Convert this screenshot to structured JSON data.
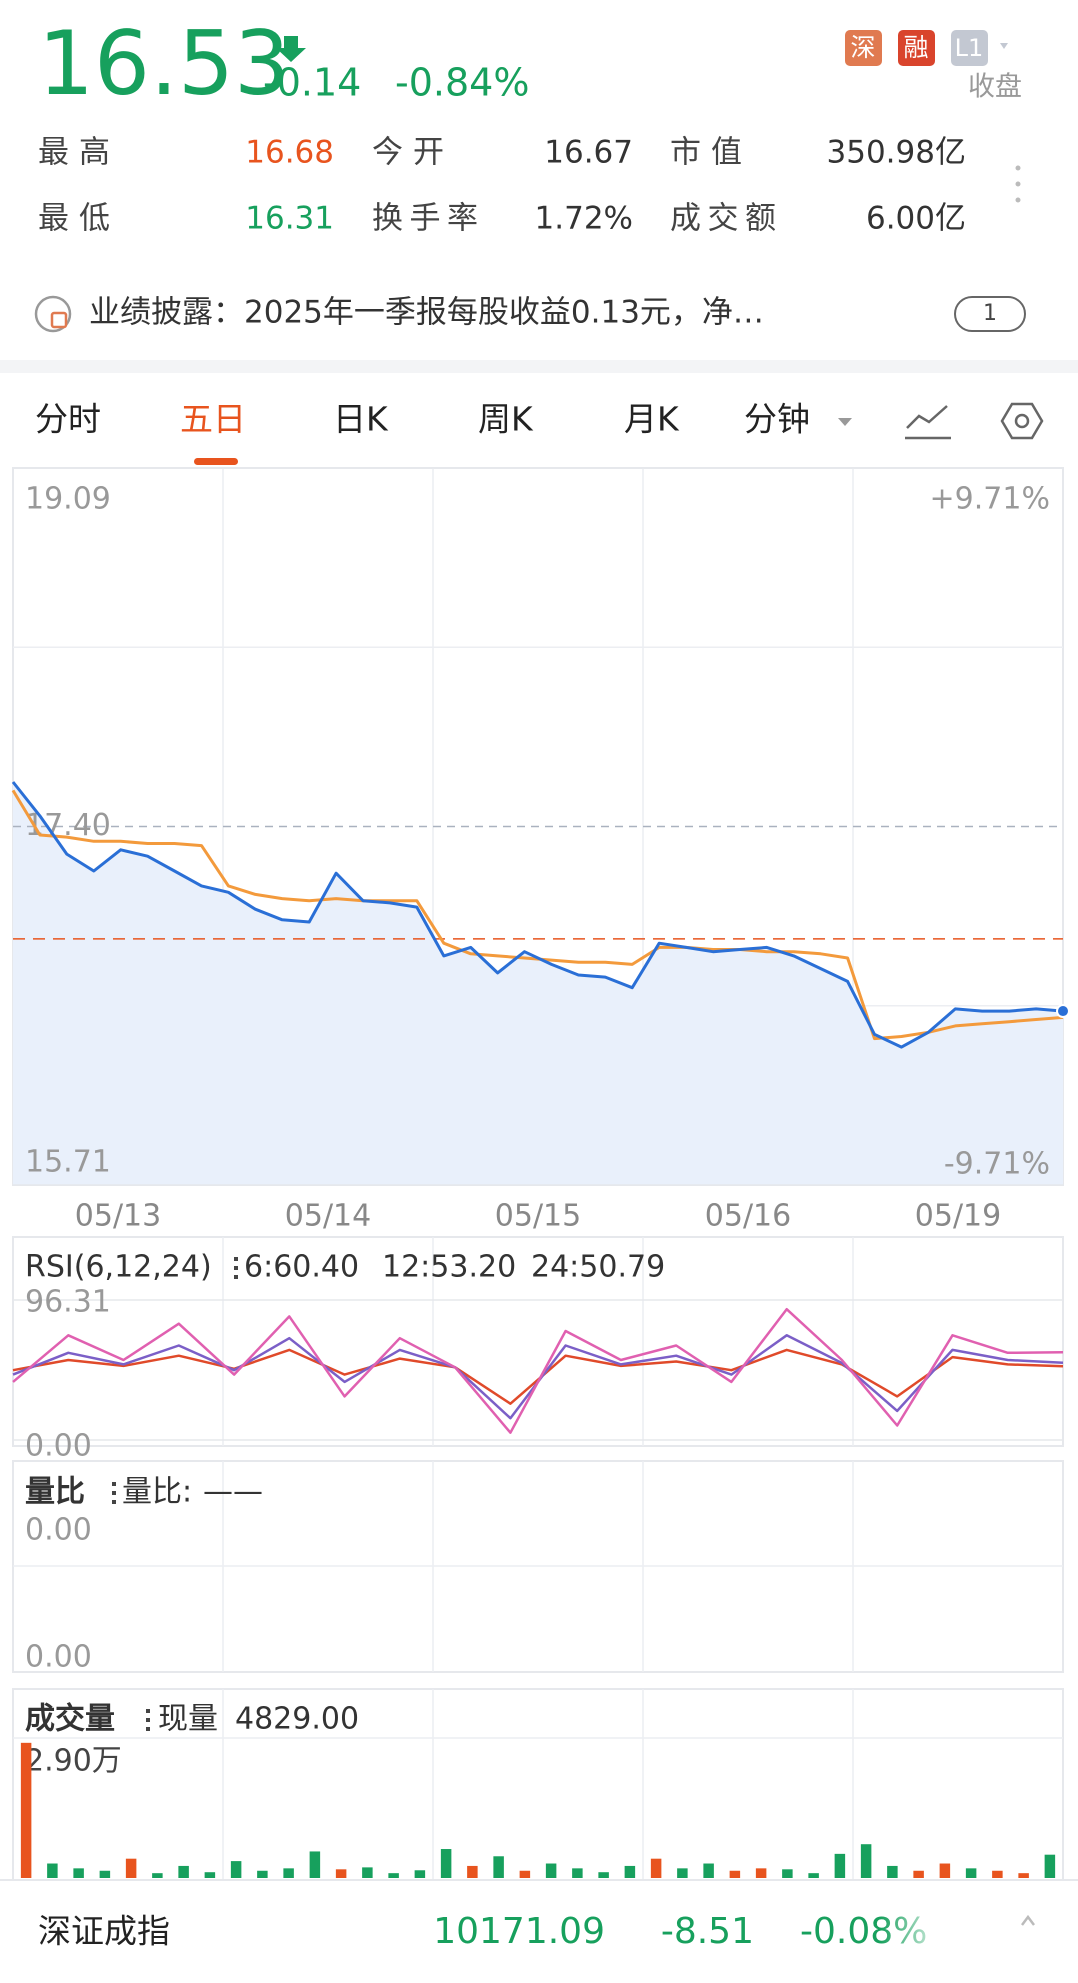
{
  "header": {
    "price": "16.53",
    "change": "-0.14",
    "change_pct": "-0.84%",
    "badges": [
      "深",
      "融",
      "L1"
    ],
    "status": "收盘"
  },
  "stats": [
    [
      {
        "label": "最高",
        "value": "16.68",
        "color": "#e8541e"
      },
      {
        "label": "今开",
        "value": "16.67",
        "color": "#333333"
      },
      {
        "label": "市值",
        "value": "350.98亿",
        "color": "#333333"
      }
    ],
    [
      {
        "label": "最低",
        "value": "16.31",
        "color": "#17a05d"
      },
      {
        "label": "换手率",
        "value": "1.72%",
        "color": "#333333"
      },
      {
        "label": "成交额",
        "value": "6.00亿",
        "color": "#333333"
      }
    ]
  ],
  "notice": {
    "text": "业绩披露：2025年一季报每股收益0.13元，净…",
    "badge": "1"
  },
  "tabs": [
    "分时",
    "五日",
    "日K",
    "周K",
    "月K",
    "分钟"
  ],
  "price_chart": {
    "type": "line",
    "x_labels": [
      "05/13",
      "05/14",
      "05/15",
      "05/16",
      "05/19"
    ],
    "series": [
      {
        "color": "#2a6fd6",
        "values": [
          17.61,
          17.45,
          17.27,
          17.19,
          17.29,
          17.26,
          17.19,
          17.12,
          17.09,
          17.01,
          16.96,
          16.95,
          17.18,
          17.05,
          17.04,
          17.02,
          16.79,
          16.83,
          16.71,
          16.81,
          16.75,
          16.7,
          16.69,
          16.64,
          16.85,
          16.83,
          16.81,
          16.82,
          16.83,
          16.79,
          16.73,
          16.67,
          16.42,
          16.36,
          16.43,
          16.54,
          16.53,
          16.53,
          16.54,
          16.53
        ]
      },
      {
        "color": "#f39a3c",
        "values": [
          17.57,
          17.36,
          17.35,
          17.33,
          17.33,
          17.32,
          17.32,
          17.31,
          17.12,
          17.08,
          17.06,
          17.05,
          17.06,
          17.05,
          17.05,
          17.05,
          16.85,
          16.8,
          16.79,
          16.78,
          16.77,
          16.76,
          16.76,
          16.75,
          16.83,
          16.83,
          16.82,
          16.82,
          16.81,
          16.81,
          16.8,
          16.78,
          16.4,
          16.41,
          16.43,
          16.46,
          16.47,
          16.48,
          16.49,
          16.5
        ]
      }
    ],
    "ylim": [
      15.71,
      19.09
    ],
    "yticks": [
      19.09,
      {
        "value": 17.4,
        "label": "17.40"
      },
      15.71
    ],
    "right_labels": [
      "+9.71%",
      "-9.71%"
    ],
    "reference_line": 16.87,
    "reference_color": "#e8541e"
  },
  "rsi": {
    "type": "line",
    "title": "RSI(6,12,24)",
    "legend": [
      "6:60.40",
      "12:53.20",
      "24:50.79"
    ],
    "series": [
      {
        "color": "#e060b0",
        "values": [
          40,
          72,
          55,
          80,
          45,
          85,
          30,
          70,
          50,
          5,
          75,
          55,
          65,
          40,
          90,
          55,
          10,
          72,
          60,
          60.4
        ]
      },
      {
        "color": "#7b5fc7",
        "values": [
          45,
          60,
          52,
          65,
          48,
          70,
          40,
          62,
          50,
          15,
          65,
          52,
          58,
          45,
          72,
          53,
          20,
          62,
          55,
          53.2
        ]
      },
      {
        "color": "#e04a2a",
        "values": [
          48,
          55,
          51,
          58,
          49,
          62,
          45,
          56,
          50,
          25,
          58,
          51,
          54,
          48,
          62,
          52,
          30,
          57,
          52,
          50.79
        ]
      }
    ],
    "ylim": [
      0,
      96.31
    ],
    "yticks": [
      96.31,
      {
        "value": 0,
        "label": "0.00"
      }
    ]
  },
  "volume_ratio": {
    "title": "量比",
    "label": "量比:",
    "value": "——",
    "top_label": "0.00",
    "bottom_label": "0.00"
  },
  "volume": {
    "type": "bar",
    "title": "成交量",
    "current_label": "现量",
    "current_value": "4829.00",
    "values": [
      28000,
      3000,
      2000,
      1500,
      4000,
      1000,
      2500,
      1200,
      3500,
      1500,
      2000,
      5500,
      1800,
      2200,
      1000,
      1600,
      6000,
      2500,
      4500,
      1500,
      3000,
      2000,
      1200,
      2500,
      4000,
      2000,
      3000,
      1500,
      2000,
      1800,
      1000,
      5000,
      7000,
      2500,
      1500,
      3000,
      2000,
      1500,
      1000,
      4829
    ],
    "up_color": "#e8541e",
    "down_color": "#17a05d",
    "ylim": [
      0,
      29000
    ],
    "yticks": [
      {
        "value": 29000,
        "label": "2.90万"
      }
    ]
  },
  "footer": {
    "name": "深证成指",
    "value": "10171.09",
    "change": "-8.51",
    "change_pct": "-0.08%"
  }
}
